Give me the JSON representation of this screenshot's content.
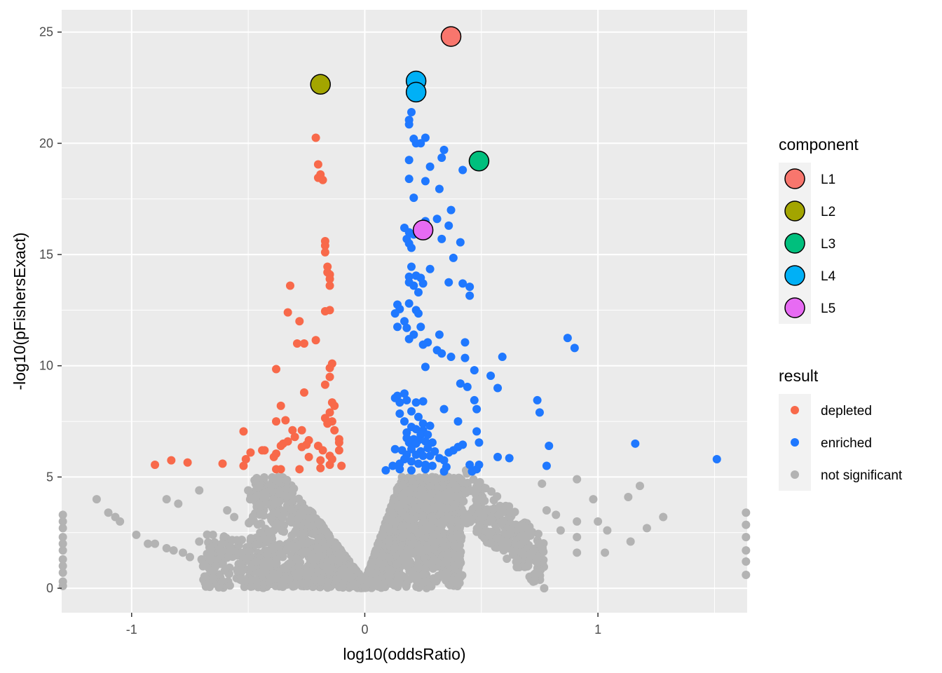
{
  "chart_data": {
    "type": "scatter",
    "title": "",
    "xlabel": "log10(oddsRatio)",
    "ylabel": "-log10(pFishersExact)",
    "xlim": [
      -1.3,
      1.64
    ],
    "ylim": [
      -1.1,
      26.0
    ],
    "x_ticks": [
      -1,
      0,
      1
    ],
    "x_tick_labels": [
      "-1",
      "0",
      "1"
    ],
    "y_ticks": [
      0,
      5,
      10,
      15,
      20,
      25
    ],
    "y_tick_labels": [
      "0",
      "5",
      "10",
      "15",
      "20",
      "25"
    ],
    "grid": true,
    "legends": [
      {
        "title": "component",
        "placement": "right",
        "entries": [
          {
            "label": "L1",
            "color": "#F8766D"
          },
          {
            "label": "L2",
            "color": "#A3A500"
          },
          {
            "label": "L3",
            "color": "#00BF7D"
          },
          {
            "label": "L4",
            "color": "#00B0F6"
          },
          {
            "label": "L5",
            "color": "#E76BF3"
          }
        ]
      },
      {
        "title": "result",
        "placement": "right",
        "entries": [
          {
            "label": "depleted",
            "color": "#F8694A"
          },
          {
            "label": "enriched",
            "color": "#1F78FF"
          },
          {
            "label": "not significant",
            "color": "#B3B3B3"
          }
        ]
      }
    ],
    "component_points": [
      {
        "component": "L1",
        "x": 0.37,
        "y": 24.8
      },
      {
        "component": "L2",
        "x": -0.19,
        "y": 22.65
      },
      {
        "component": "L3",
        "x": 0.49,
        "y": 19.2
      },
      {
        "component": "L4",
        "x": 0.22,
        "y": 22.8
      },
      {
        "component": "L4",
        "x": 0.22,
        "y": 22.3
      },
      {
        "component": "L5",
        "x": 0.25,
        "y": 16.1
      }
    ],
    "series": [
      {
        "name": "depleted",
        "points": [
          [
            -0.21,
            20.25
          ],
          [
            -0.2,
            19.05
          ],
          [
            -0.19,
            18.6
          ],
          [
            -0.2,
            18.45
          ],
          [
            -0.18,
            18.35
          ],
          [
            -0.17,
            15.6
          ],
          [
            -0.17,
            15.4
          ],
          [
            -0.17,
            15.1
          ],
          [
            -0.16,
            14.45
          ],
          [
            -0.16,
            14.2
          ],
          [
            -0.15,
            14.1
          ],
          [
            -0.15,
            13.9
          ],
          [
            -0.15,
            13.6
          ],
          [
            -0.32,
            13.6
          ],
          [
            -0.17,
            12.45
          ],
          [
            -0.15,
            12.5
          ],
          [
            -0.33,
            12.4
          ],
          [
            -0.28,
            12.0
          ],
          [
            -0.21,
            11.15
          ],
          [
            -0.29,
            11.0
          ],
          [
            -0.26,
            11.0
          ],
          [
            -0.14,
            10.1
          ],
          [
            -0.15,
            9.9
          ],
          [
            -0.38,
            9.85
          ],
          [
            -0.15,
            9.5
          ],
          [
            -0.17,
            9.15
          ],
          [
            -0.26,
            8.8
          ],
          [
            -0.14,
            8.35
          ],
          [
            -0.13,
            8.2
          ],
          [
            -0.36,
            8.2
          ],
          [
            -0.15,
            7.9
          ],
          [
            -0.17,
            7.65
          ],
          [
            -0.14,
            7.5
          ],
          [
            -0.16,
            7.4
          ],
          [
            -0.34,
            7.55
          ],
          [
            -0.38,
            7.5
          ],
          [
            -0.31,
            7.1
          ],
          [
            -0.27,
            7.1
          ],
          [
            -0.52,
            7.05
          ],
          [
            -0.13,
            7.1
          ],
          [
            -0.3,
            6.8
          ],
          [
            -0.33,
            6.6
          ],
          [
            -0.35,
            6.5
          ],
          [
            -0.36,
            6.4
          ],
          [
            -0.24,
            6.65
          ],
          [
            -0.11,
            6.7
          ],
          [
            -0.11,
            6.55
          ],
          [
            -0.2,
            6.4
          ],
          [
            -0.27,
            6.35
          ],
          [
            -0.43,
            6.2
          ],
          [
            -0.49,
            6.1
          ],
          [
            -0.44,
            6.2
          ],
          [
            -0.38,
            6.05
          ],
          [
            -0.39,
            5.9
          ],
          [
            -0.11,
            6.2
          ],
          [
            -0.18,
            6.2
          ],
          [
            -0.25,
            6.45
          ],
          [
            -0.15,
            5.95
          ],
          [
            -0.14,
            5.8
          ],
          [
            -0.19,
            5.75
          ],
          [
            -0.51,
            5.8
          ],
          [
            -0.83,
            5.75
          ],
          [
            -0.76,
            5.65
          ],
          [
            -0.61,
            5.6
          ],
          [
            -0.52,
            5.5
          ],
          [
            -0.9,
            5.55
          ],
          [
            -0.36,
            5.35
          ],
          [
            -0.38,
            5.35
          ],
          [
            -0.28,
            5.35
          ],
          [
            -0.19,
            5.4
          ],
          [
            -0.15,
            5.55
          ],
          [
            -0.1,
            5.5
          ],
          [
            -0.24,
            5.9
          ]
        ]
      },
      {
        "name": "enriched",
        "points": [
          [
            0.2,
            21.4
          ],
          [
            0.19,
            21.05
          ],
          [
            0.19,
            20.85
          ],
          [
            0.21,
            20.2
          ],
          [
            0.22,
            20.0
          ],
          [
            0.24,
            20.0
          ],
          [
            0.26,
            20.25
          ],
          [
            0.34,
            19.7
          ],
          [
            0.33,
            19.35
          ],
          [
            0.19,
            19.25
          ],
          [
            0.28,
            18.95
          ],
          [
            0.42,
            18.8
          ],
          [
            0.19,
            18.4
          ],
          [
            0.26,
            18.3
          ],
          [
            0.32,
            17.95
          ],
          [
            0.21,
            17.55
          ],
          [
            0.37,
            17.0
          ],
          [
            0.31,
            16.6
          ],
          [
            0.26,
            16.5
          ],
          [
            0.36,
            16.3
          ],
          [
            0.17,
            16.2
          ],
          [
            0.19,
            16.0
          ],
          [
            0.21,
            15.9
          ],
          [
            0.18,
            15.7
          ],
          [
            0.19,
            15.5
          ],
          [
            0.33,
            15.7
          ],
          [
            0.41,
            15.55
          ],
          [
            0.2,
            15.3
          ],
          [
            0.38,
            14.85
          ],
          [
            0.2,
            14.45
          ],
          [
            0.28,
            14.35
          ],
          [
            0.19,
            14.0
          ],
          [
            0.22,
            14.05
          ],
          [
            0.24,
            13.95
          ],
          [
            0.19,
            13.75
          ],
          [
            0.21,
            13.6
          ],
          [
            0.25,
            13.7
          ],
          [
            0.36,
            13.75
          ],
          [
            0.42,
            13.7
          ],
          [
            0.45,
            13.55
          ],
          [
            0.23,
            13.3
          ],
          [
            0.45,
            13.15
          ],
          [
            0.14,
            12.75
          ],
          [
            0.15,
            12.55
          ],
          [
            0.19,
            12.8
          ],
          [
            0.22,
            12.5
          ],
          [
            0.23,
            12.35
          ],
          [
            0.13,
            12.35
          ],
          [
            0.17,
            12.0
          ],
          [
            0.18,
            11.7
          ],
          [
            0.14,
            11.75
          ],
          [
            0.24,
            11.75
          ],
          [
            0.21,
            11.4
          ],
          [
            0.32,
            11.4
          ],
          [
            0.19,
            11.2
          ],
          [
            0.27,
            11.05
          ],
          [
            0.25,
            10.95
          ],
          [
            0.43,
            11.05
          ],
          [
            0.31,
            10.7
          ],
          [
            0.33,
            10.55
          ],
          [
            0.37,
            10.4
          ],
          [
            0.43,
            10.35
          ],
          [
            0.59,
            10.4
          ],
          [
            0.87,
            11.25
          ],
          [
            0.9,
            10.8
          ],
          [
            0.26,
            9.95
          ],
          [
            0.47,
            9.8
          ],
          [
            0.54,
            9.55
          ],
          [
            0.41,
            9.2
          ],
          [
            0.44,
            9.05
          ],
          [
            0.57,
            9.0
          ],
          [
            0.17,
            8.75
          ],
          [
            0.13,
            8.55
          ],
          [
            0.14,
            8.65
          ],
          [
            0.18,
            8.45
          ],
          [
            0.25,
            8.4
          ],
          [
            0.15,
            8.35
          ],
          [
            0.22,
            8.35
          ],
          [
            0.47,
            8.45
          ],
          [
            0.74,
            8.45
          ],
          [
            0.75,
            7.9
          ],
          [
            0.48,
            8.05
          ],
          [
            0.34,
            8.05
          ],
          [
            0.2,
            7.95
          ],
          [
            0.15,
            7.85
          ],
          [
            0.23,
            7.7
          ],
          [
            0.17,
            7.5
          ],
          [
            0.25,
            7.4
          ],
          [
            0.4,
            7.5
          ],
          [
            0.28,
            7.3
          ],
          [
            0.2,
            7.25
          ],
          [
            0.22,
            7.15
          ],
          [
            0.25,
            7.1
          ],
          [
            0.18,
            7.0
          ],
          [
            0.48,
            7.05
          ],
          [
            0.24,
            6.9
          ],
          [
            0.27,
            6.9
          ],
          [
            0.18,
            6.75
          ],
          [
            0.21,
            6.7
          ],
          [
            0.23,
            6.65
          ],
          [
            0.26,
            6.6
          ],
          [
            0.19,
            6.55
          ],
          [
            0.22,
            6.5
          ],
          [
            0.29,
            6.55
          ],
          [
            0.49,
            6.55
          ],
          [
            0.42,
            6.45
          ],
          [
            0.4,
            6.35
          ],
          [
            0.13,
            6.25
          ],
          [
            0.16,
            6.2
          ],
          [
            0.2,
            6.25
          ],
          [
            0.27,
            6.3
          ],
          [
            0.24,
            6.15
          ],
          [
            0.38,
            6.2
          ],
          [
            0.36,
            6.1
          ],
          [
            0.3,
            6.15
          ],
          [
            0.18,
            6.0
          ],
          [
            0.22,
            6.0
          ],
          [
            0.25,
            5.95
          ],
          [
            0.28,
            5.95
          ],
          [
            0.32,
            5.85
          ],
          [
            0.34,
            5.75
          ],
          [
            0.17,
            5.8
          ],
          [
            0.15,
            5.6
          ],
          [
            0.2,
            5.7
          ],
          [
            0.23,
            5.6
          ],
          [
            0.26,
            5.55
          ],
          [
            0.29,
            5.5
          ],
          [
            0.35,
            5.45
          ],
          [
            0.45,
            5.55
          ],
          [
            0.49,
            5.55
          ],
          [
            0.57,
            5.9
          ],
          [
            0.62,
            5.85
          ],
          [
            0.79,
            6.4
          ],
          [
            1.16,
            6.5
          ],
          [
            1.51,
            5.8
          ],
          [
            0.78,
            5.5
          ],
          [
            0.15,
            5.35
          ],
          [
            0.2,
            5.3
          ],
          [
            0.26,
            5.35
          ],
          [
            0.34,
            5.25
          ],
          [
            0.46,
            5.25
          ],
          [
            0.48,
            5.35
          ],
          [
            0.12,
            5.5
          ],
          [
            0.09,
            5.3
          ]
        ]
      },
      {
        "name": "not significant",
        "generated": true,
        "note": "dense cloud of non-significant tests around x=0, y=0 to 5"
      }
    ]
  }
}
